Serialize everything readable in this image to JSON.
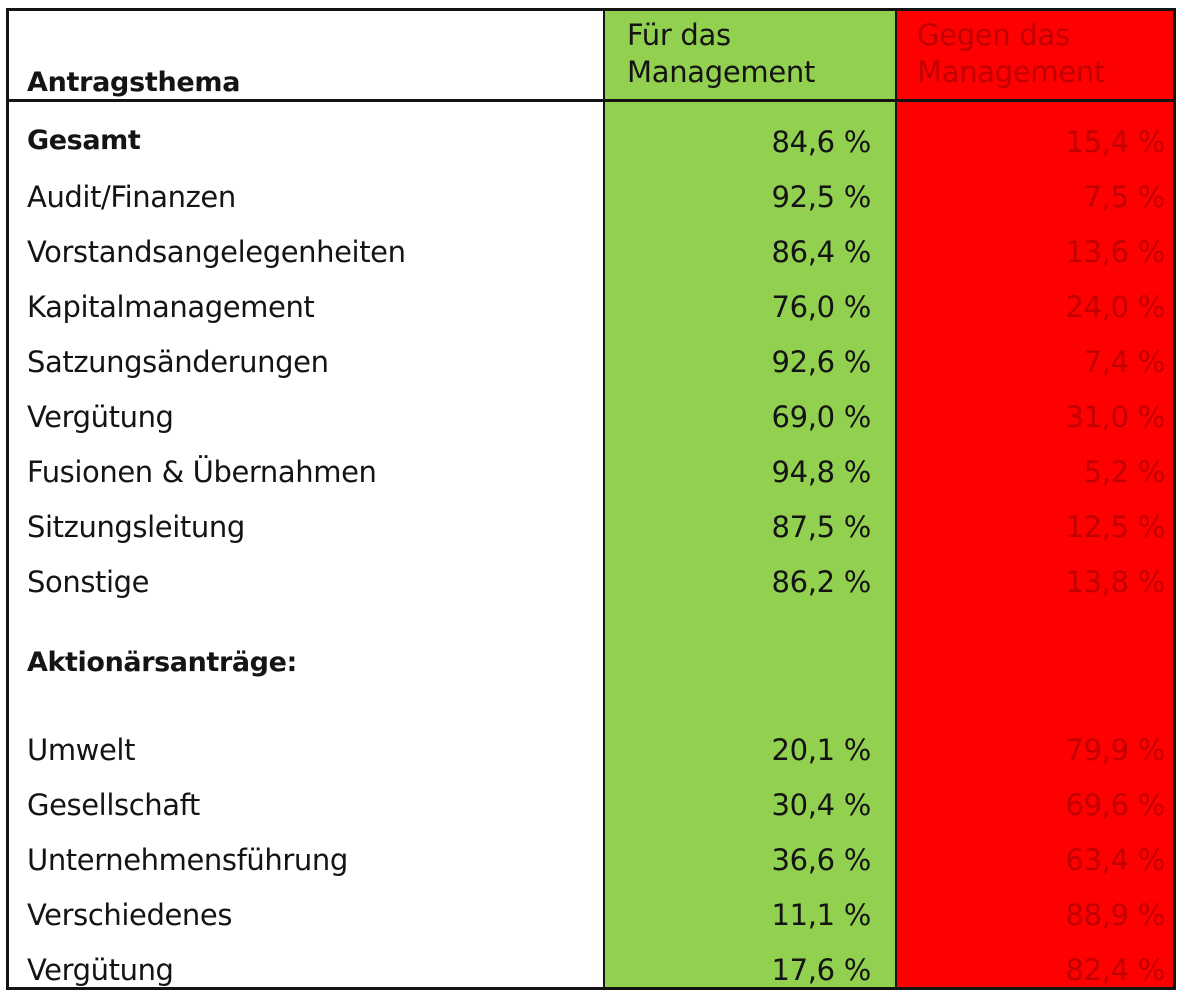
{
  "colors": {
    "for_column": "#92d050",
    "against_column": "#ff0000",
    "against_text": "#c00000"
  },
  "header": {
    "topic": "Antragsthema",
    "for_line1": "Für das",
    "for_line2": "Management",
    "against_line1": "Gegen das",
    "against_line2": "Management"
  },
  "rows": [
    {
      "label": "Gesamt",
      "for": "84,6 %",
      "against": "15,4 %"
    },
    {
      "label": "Audit/Finanzen",
      "for": "92,5 %",
      "against": "7,5 %"
    },
    {
      "label": "Vorstandsangelegenheiten",
      "for": "86,4 %",
      "against": "13,6 %"
    },
    {
      "label": "Kapitalmanagement",
      "for": "76,0 %",
      "against": "24,0 %"
    },
    {
      "label": "Satzungsänderungen",
      "for": "92,6 %",
      "against": "7,4 %"
    },
    {
      "label": "Vergütung",
      "for": "69,0 %",
      "against": "31,0 %"
    },
    {
      "label": "Fusionen & Übernahmen",
      "for": "94,8 %",
      "against": "5,2 %"
    },
    {
      "label": "Sitzungsleitung",
      "for": "87,5 %",
      "against": "12,5 %"
    },
    {
      "label": "Sonstige",
      "for": "86,2 %",
      "against": "13,8 %"
    }
  ],
  "shareholder_section": {
    "title": "Aktionärsanträge:"
  },
  "shareholder_rows": [
    {
      "label": "Umwelt",
      "for": "20,1 %",
      "against": "79,9 %"
    },
    {
      "label": "Gesellschaft",
      "for": "30,4 %",
      "against": "69,6 %"
    },
    {
      "label": "Unternehmensführung",
      "for": "36,6 %",
      "against": "63,4 %"
    },
    {
      "label": "Verschiedenes",
      "for": "11,1 %",
      "against": "88,9 %"
    },
    {
      "label": "Vergütung",
      "for": "17,6 %",
      "against": "82,4 %"
    }
  ]
}
